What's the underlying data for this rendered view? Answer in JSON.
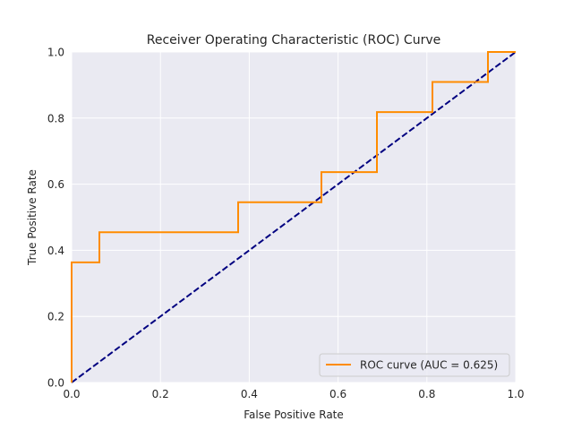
{
  "chart_data": {
    "type": "line",
    "title": "Receiver Operating Characteristic (ROC) Curve",
    "xlabel": "False Positive Rate",
    "ylabel": "True Positive Rate",
    "xlim": [
      0.0,
      1.0
    ],
    "ylim": [
      0.0,
      1.0
    ],
    "xticks": [
      0.0,
      0.2,
      0.4,
      0.6,
      0.8,
      1.0
    ],
    "yticks": [
      0.0,
      0.2,
      0.4,
      0.6,
      0.8,
      1.0
    ],
    "xtick_labels": [
      "0.0",
      "0.2",
      "0.4",
      "0.6",
      "0.8",
      "1.0"
    ],
    "ytick_labels": [
      "0.0",
      "0.2",
      "0.4",
      "0.6",
      "0.8",
      "1.0"
    ],
    "grid": true,
    "legend_position": "lower right",
    "background_color": "#eaeaf2",
    "series": [
      {
        "name": "ROC curve (AUC = 0.625)",
        "color": "#ff8c00",
        "style": "solid-step",
        "x": [
          0.0,
          0.0,
          0.0625,
          0.0625,
          0.375,
          0.375,
          0.5625,
          0.5625,
          0.6875,
          0.6875,
          0.8125,
          0.8125,
          0.9375,
          0.9375,
          1.0
        ],
        "y": [
          0.0,
          0.3636,
          0.3636,
          0.4545,
          0.4545,
          0.5455,
          0.5455,
          0.6364,
          0.6364,
          0.8182,
          0.8182,
          0.9091,
          0.9091,
          1.0,
          1.0
        ]
      },
      {
        "name": "",
        "color": "#000080",
        "style": "dashed",
        "x": [
          0.0,
          1.0
        ],
        "y": [
          0.0,
          1.0
        ]
      }
    ]
  }
}
